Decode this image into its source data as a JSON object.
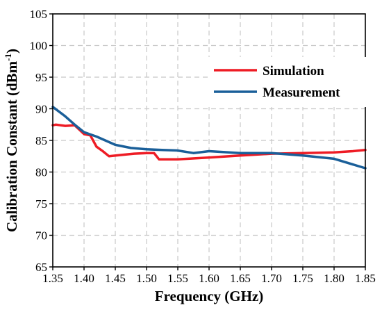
{
  "chart_data": {
    "type": "line",
    "title": "",
    "xlabel": "Frequency (GHz)",
    "ylabel_main": "Calibration Constant (dBm",
    "ylabel_sup": "-1",
    "ylabel_close": ")",
    "xlim": [
      1.35,
      1.85
    ],
    "ylim": [
      65,
      105
    ],
    "xticks": [
      "1.35",
      "1.40",
      "1.45",
      "1.50",
      "1.55",
      "1.60",
      "1.65",
      "1.70",
      "1.75",
      "1.80",
      "1.85"
    ],
    "yticks": [
      "65",
      "70",
      "75",
      "80",
      "85",
      "90",
      "95",
      "100",
      "105"
    ],
    "grid": true,
    "legend_position": "top-right",
    "series": [
      {
        "name": "Simulation",
        "color": "#ee1c25",
        "x": [
          1.35,
          1.355,
          1.37,
          1.385,
          1.4,
          1.41,
          1.42,
          1.43,
          1.44,
          1.46,
          1.48,
          1.5,
          1.512,
          1.52,
          1.55,
          1.6,
          1.65,
          1.7,
          1.75,
          1.8,
          1.83,
          1.85
        ],
        "y": [
          87.4,
          87.5,
          87.3,
          87.4,
          86.0,
          85.8,
          84.0,
          83.3,
          82.5,
          82.7,
          82.9,
          83.0,
          83.0,
          82.0,
          82.0,
          82.3,
          82.6,
          82.9,
          83.0,
          83.1,
          83.3,
          83.5
        ]
      },
      {
        "name": "Measurement",
        "color": "#1a5f99",
        "x": [
          1.35,
          1.37,
          1.385,
          1.4,
          1.42,
          1.45,
          1.475,
          1.5,
          1.525,
          1.55,
          1.575,
          1.6,
          1.65,
          1.7,
          1.75,
          1.8,
          1.85
        ],
        "y": [
          90.3,
          88.8,
          87.5,
          86.3,
          85.6,
          84.3,
          83.8,
          83.6,
          83.5,
          83.4,
          83.0,
          83.3,
          83.0,
          83.0,
          82.6,
          82.1,
          80.6
        ]
      }
    ]
  }
}
